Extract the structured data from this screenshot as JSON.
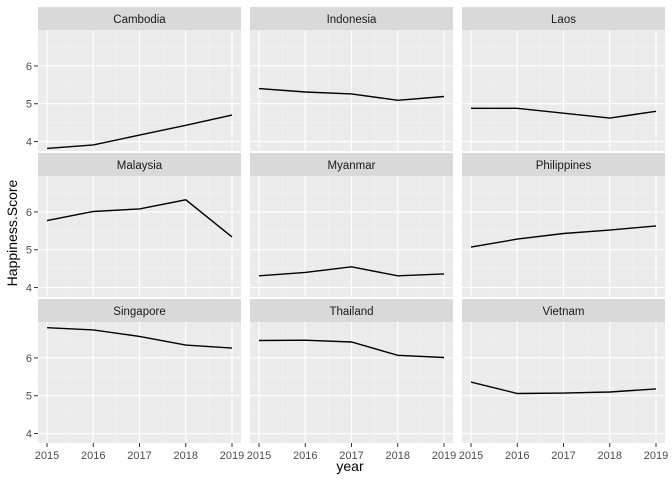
{
  "chart_data": {
    "type": "line",
    "facet_by": "country",
    "xlabel": "year",
    "ylabel": "Happiness.Score",
    "x": [
      2015,
      2016,
      2017,
      2018,
      2019
    ],
    "x_tick_labels": [
      "2015",
      "2016",
      "2017",
      "2018",
      "2019"
    ],
    "ylim": [
      3.75,
      6.95
    ],
    "y_ticks": [
      4,
      5,
      6
    ],
    "y_tick_labels": [
      "4",
      "5",
      "6"
    ],
    "grid": true,
    "line_color": "#000000",
    "panel_background": "#ebebeb",
    "strip_background": "#d9d9d9",
    "series": [
      {
        "name": "Cambodia",
        "values": [
          3.82,
          3.91,
          4.17,
          4.43,
          4.7
        ]
      },
      {
        "name": "Indonesia",
        "values": [
          5.4,
          5.31,
          5.26,
          5.09,
          5.19
        ]
      },
      {
        "name": "Laos",
        "values": [
          4.88,
          4.88,
          4.75,
          4.62,
          4.8
        ]
      },
      {
        "name": "Malaysia",
        "values": [
          5.77,
          6.01,
          6.08,
          6.32,
          5.34
        ]
      },
      {
        "name": "Myanmar",
        "values": [
          4.31,
          4.4,
          4.55,
          4.31,
          4.36
        ]
      },
      {
        "name": "Philippines",
        "values": [
          5.07,
          5.28,
          5.43,
          5.52,
          5.63
        ]
      },
      {
        "name": "Singapore",
        "values": [
          6.8,
          6.74,
          6.57,
          6.34,
          6.26
        ]
      },
      {
        "name": "Thailand",
        "values": [
          6.46,
          6.47,
          6.42,
          6.07,
          6.01
        ]
      },
      {
        "name": "Vietnam",
        "values": [
          5.36,
          5.06,
          5.07,
          5.1,
          5.18
        ]
      }
    ]
  }
}
